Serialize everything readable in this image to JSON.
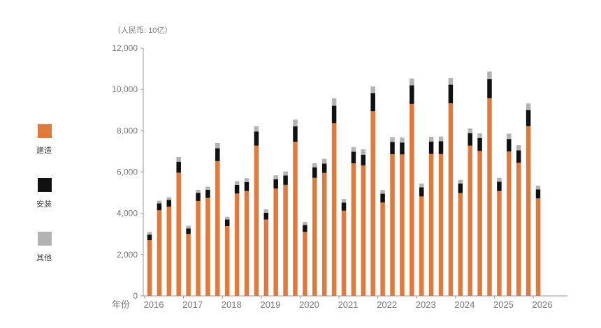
{
  "chart_data": {
    "type": "bar",
    "stacked": true,
    "unit_label": "（人民币: 10亿）",
    "xlabel": "年份",
    "ylim": [
      0,
      12000
    ],
    "yticks": [
      0,
      2000,
      4000,
      6000,
      8000,
      10000,
      12000
    ],
    "ytick_labels": [
      "0",
      "2,000",
      "4,000",
      "6,000",
      "8,000",
      "10,000",
      "12,000"
    ],
    "year_labels": [
      "2016",
      "2017",
      "2018",
      "2019",
      "2020",
      "2021",
      "2022",
      "2023",
      "2024",
      "2025",
      "2026"
    ],
    "grid": false,
    "legend_position": "left",
    "bars_per_year": 4,
    "series": [
      {
        "name": "建造",
        "color": "#e07a3c",
        "values": [
          2700,
          4150,
          4320,
          5970,
          3000,
          4600,
          4750,
          6530,
          3380,
          4960,
          5080,
          7280,
          3700,
          5200,
          5380,
          7470,
          3100,
          5720,
          5960,
          8370,
          4130,
          6420,
          6320,
          8950,
          4520,
          6860,
          6850,
          9300,
          4820,
          6880,
          6870,
          9330,
          4980,
          7280,
          7020,
          9580,
          5080,
          7000,
          6450,
          8220,
          4720
        ]
      },
      {
        "name": "安装",
        "color": "#111111",
        "values": [
          270,
          330,
          330,
          530,
          270,
          390,
          390,
          620,
          320,
          420,
          430,
          680,
          330,
          450,
          450,
          740,
          330,
          510,
          450,
          840,
          390,
          560,
          520,
          880,
          430,
          600,
          580,
          900,
          440,
          600,
          620,
          900,
          460,
          600,
          620,
          930,
          450,
          600,
          600,
          780,
          440
        ]
      },
      {
        "name": "其他",
        "color": "#b3b3b3",
        "values": [
          130,
          130,
          130,
          230,
          130,
          150,
          150,
          250,
          130,
          170,
          190,
          260,
          170,
          190,
          200,
          330,
          150,
          200,
          230,
          360,
          170,
          230,
          260,
          320,
          180,
          230,
          240,
          330,
          180,
          230,
          230,
          320,
          180,
          230,
          230,
          360,
          190,
          260,
          250,
          320,
          180
        ]
      }
    ]
  }
}
